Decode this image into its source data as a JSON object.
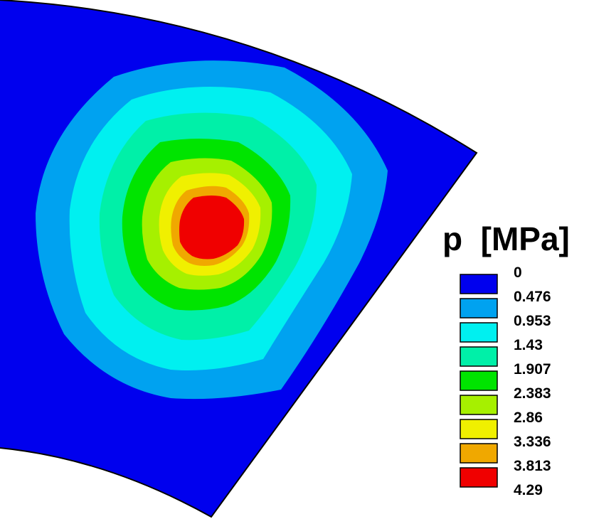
{
  "chart_data": {
    "type": "heatmap",
    "title": "",
    "legend": {
      "title": "p  [MPa]",
      "placement": "right",
      "levels": [
        "0",
        "0.476",
        "0.953",
        "1.43",
        "1.907",
        "2.383",
        "2.86",
        "3.336",
        "3.813",
        "4.29"
      ],
      "colors": [
        "#0000ee",
        "#00a2f0",
        "#00f0f0",
        "#00f0a8",
        "#00e400",
        "#a6f000",
        "#f0f000",
        "#f0a800",
        "#f00000"
      ]
    },
    "field": {
      "quantity": "p",
      "unit": "MPa",
      "min": 0,
      "max": 4.29,
      "peak_location": "center-left of sector",
      "shape": "concentric contour bands decreasing outward from a single peak"
    },
    "domain": "annular sector"
  }
}
